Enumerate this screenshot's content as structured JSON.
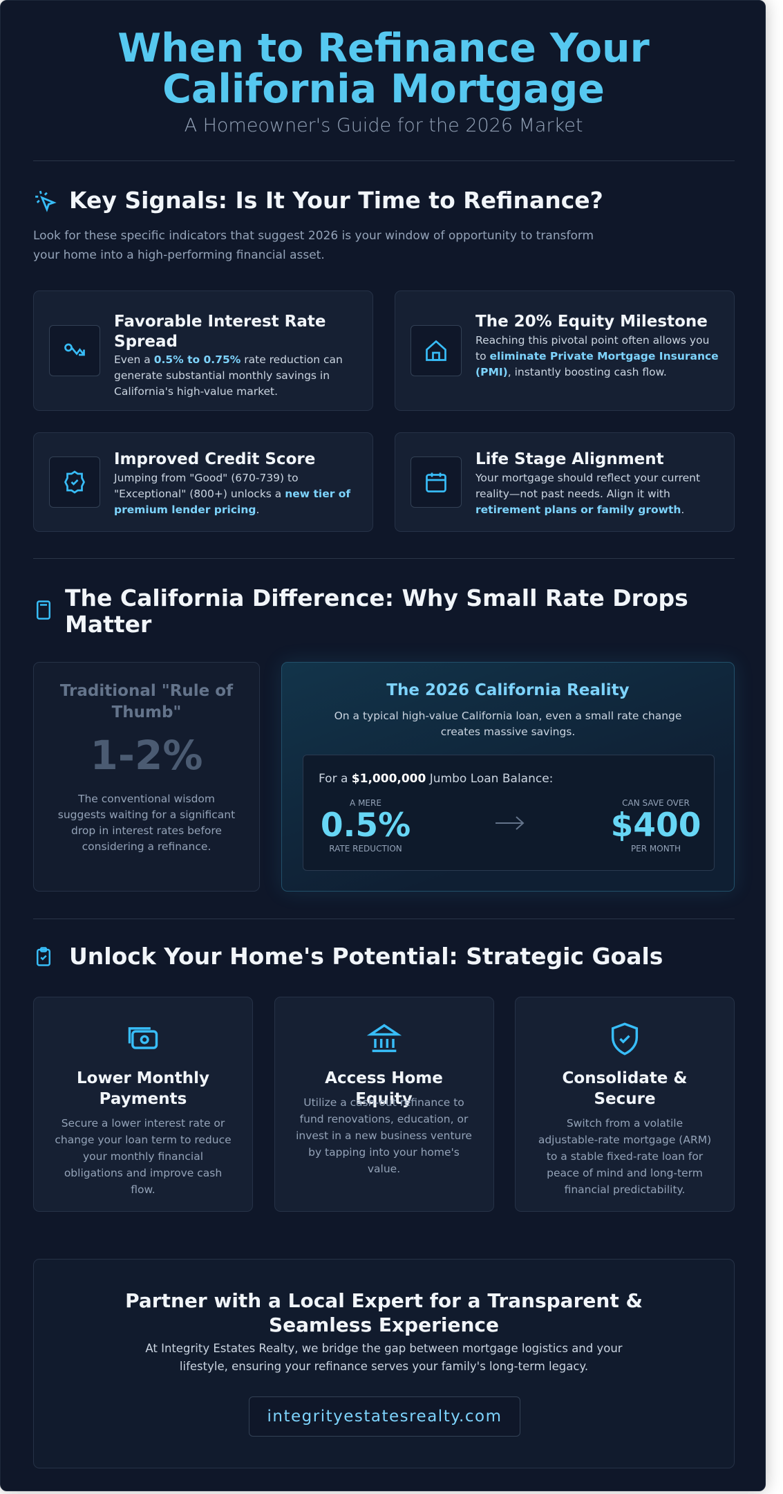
{
  "header": {
    "title": "When to Refinance Your California Mortgage",
    "subtitle": "A Homeowner's Guide for the 2026 Market"
  },
  "signals": {
    "heading": "Key Signals: Is It Your Time to Refinance?",
    "intro": "Look for these specific indicators that suggest 2026 is your window of opportunity to transform your home into a high-performing financial asset.",
    "cards": [
      {
        "title": "Favorable Interest Rate Spread",
        "desc": {
          "before": "Even a ",
          "strong": "0.5% to 0.75%",
          "after": " rate reduction can generate substantial monthly savings in California's high-value market."
        }
      },
      {
        "title": "The 20% Equity Milestone",
        "desc": {
          "before": "Reaching this pivotal point often allows you to ",
          "strong": "eliminate Private Mortgage Insurance (PMI)",
          "after": ", instantly boosting cash flow."
        }
      },
      {
        "title": "Improved Credit Score",
        "desc": {
          "before": "Jumping from \"Good\" (670-739) to \"Exceptional\" (800+) unlocks a ",
          "strong": "new tier of premium lender pricing",
          "after": "."
        }
      },
      {
        "title": "Life Stage Alignment",
        "desc": {
          "before": "Your mortgage should reflect your current reality—not past needs. Align it with ",
          "strong": "retirement plans or family growth",
          "after": "."
        }
      }
    ]
  },
  "difference": {
    "heading": "The California Difference: Why Small Rate Drops Matter",
    "traditional": {
      "title": "Traditional \"Rule of Thumb\"",
      "figure": "1-2%",
      "text": "The conventional wisdom suggests waiting for a significant drop in interest rates before considering a refinance."
    },
    "reality": {
      "title": "The 2026 California Reality",
      "text": "On a typical high-value California loan, even a small rate change creates massive savings.",
      "example": {
        "before": "For a ",
        "amount": "$1,000,000",
        "after": " Jumbo Loan Balance:"
      },
      "left": {
        "label": "A MERE",
        "figure": "0.5%",
        "caption": "RATE REDUCTION"
      },
      "right": {
        "label": "CAN SAVE OVER",
        "figure": "$400",
        "caption": "PER MONTH"
      }
    }
  },
  "goals": {
    "heading": "Unlock Your Home's Potential: Strategic Goals",
    "cards": [
      {
        "title": "Lower Monthly Payments",
        "text": "Secure a lower interest rate or change your loan term to reduce your monthly financial obligations and improve cash flow."
      },
      {
        "title": "Access Home Equity",
        "text": "Utilize a cash-out refinance to fund renovations, education, or invest in a new business venture by tapping into your home's value."
      },
      {
        "title": "Consolidate & Secure",
        "text": "Switch from a volatile adjustable-rate mortgage (ARM) to a stable fixed-rate loan for peace of mind and long-term financial predictability."
      }
    ]
  },
  "cta": {
    "title": "Partner with a Local Expert for a Transparent & Seamless Experience",
    "text": "At Integrity Estates Realty, we bridge the gap between mortgage logistics and your lifestyle, ensuring your refinance serves your family's long-term legacy.",
    "link": "integrityestatesrealty.com"
  }
}
